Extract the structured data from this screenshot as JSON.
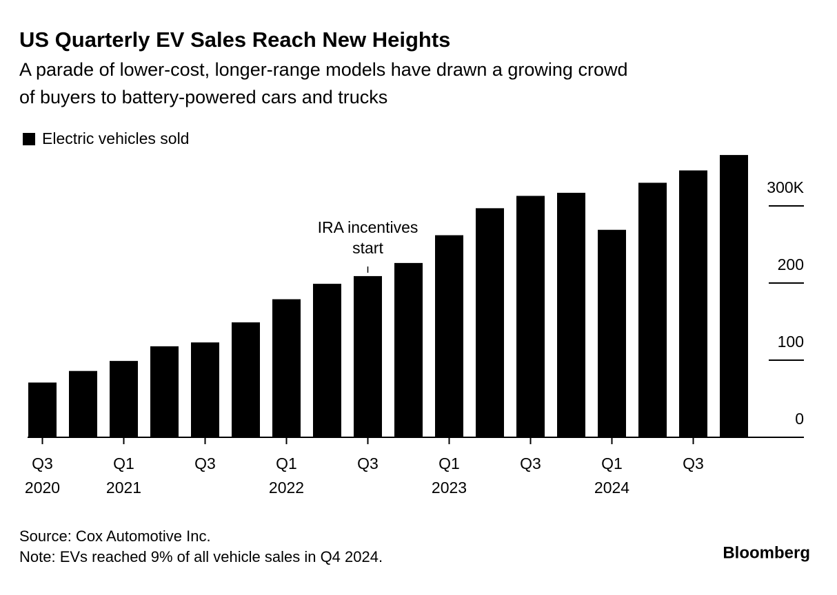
{
  "chart_data": {
    "type": "bar",
    "title": "US Quarterly EV Sales Reach New Heights",
    "subtitle": [
      "A parade of lower-cost, longer-range models have drawn a growing crowd",
      "of buyers to battery-powered cars and trucks"
    ],
    "categories": [
      [
        "Q3",
        "2020"
      ],
      null,
      [
        "Q1",
        "2021"
      ],
      null,
      [
        "Q3"
      ],
      null,
      [
        "Q1",
        "2022"
      ],
      null,
      [
        "Q3"
      ],
      null,
      [
        "Q1",
        "2023"
      ],
      null,
      [
        "Q3"
      ],
      null,
      [
        "Q1",
        "2024"
      ],
      null,
      [
        "Q3"
      ],
      null
    ],
    "series": [
      {
        "name": "Electric vehicles sold",
        "color": "#000000",
        "values": [
          71,
          86,
          99,
          118,
          123,
          149,
          179,
          199,
          209,
          226,
          262,
          297,
          313,
          317,
          269,
          330,
          346,
          366
        ]
      }
    ],
    "ylim": [
      0,
      370
    ],
    "yticks": [
      0,
      100,
      200,
      {
        "value": 300,
        "label": "300K"
      }
    ],
    "annotation": [
      "IRA incentives",
      "start"
    ],
    "source": "Source: Cox Automotive Inc.",
    "note": "Note: EVs reached 9% of all vehicle sales in Q4 2024.",
    "brand": "Bloomberg"
  }
}
